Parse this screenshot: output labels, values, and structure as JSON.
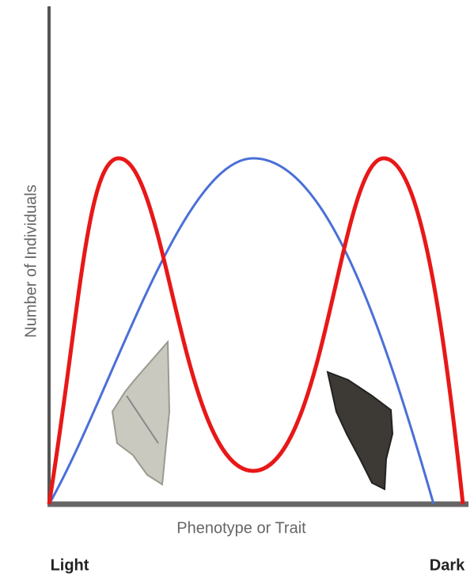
{
  "axis_labels": {
    "y": "Number of Individuals",
    "x": "Phenotype or Trait"
  },
  "scale_labels": {
    "left": "Light",
    "right": "Dark"
  }
}
